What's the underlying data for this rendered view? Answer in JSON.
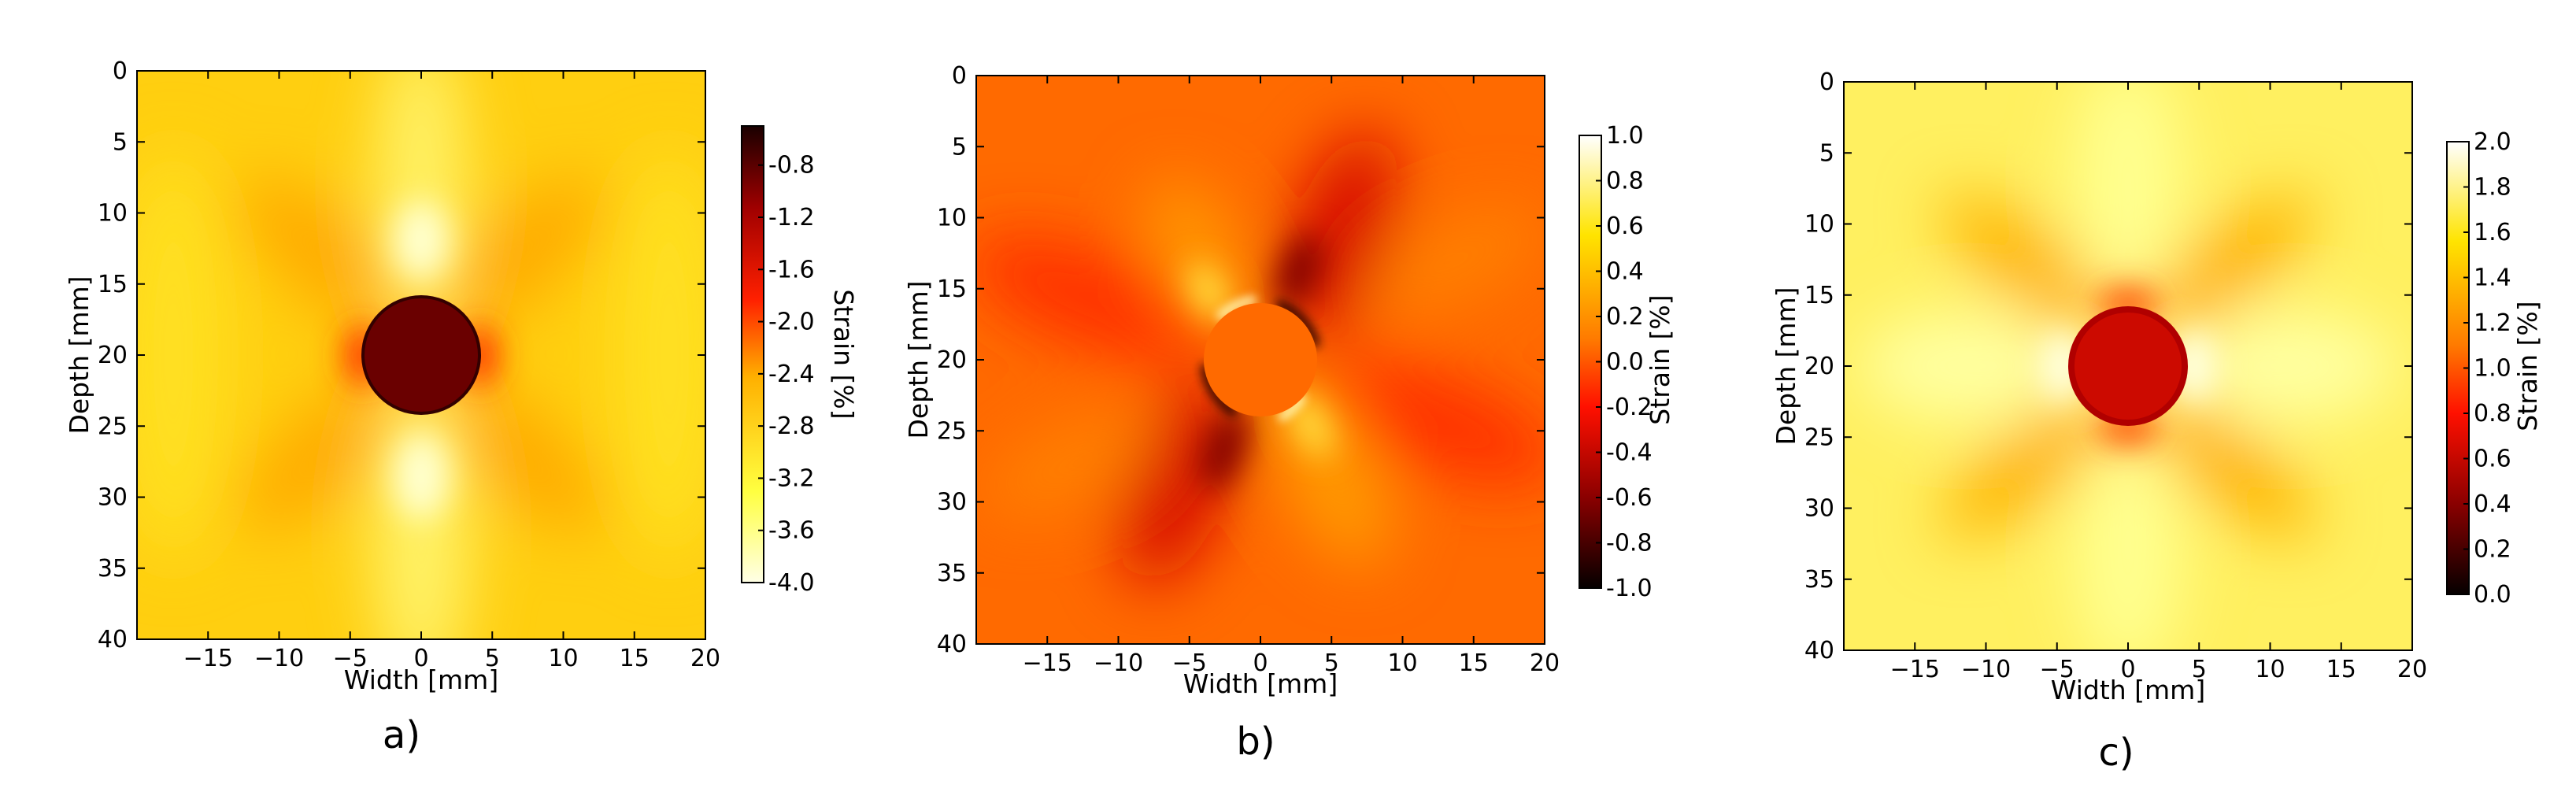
{
  "chart_data": [
    {
      "type": "heatmap",
      "panel_label": "a)",
      "xlabel": "Width [mm]",
      "ylabel": "Depth [mm]",
      "xlim": [
        -20,
        20
      ],
      "ylim": [
        40,
        0
      ],
      "x_ticks": [
        "−15",
        "−10",
        "−5",
        "0",
        "5",
        "10",
        "15",
        "20"
      ],
      "x_tick_values": [
        -15,
        -10,
        -5,
        0,
        5,
        10,
        15,
        20
      ],
      "y_ticks": [
        "0",
        "5",
        "10",
        "15",
        "20",
        "25",
        "30",
        "35",
        "40"
      ],
      "y_tick_values": [
        0,
        5,
        10,
        15,
        20,
        25,
        30,
        35,
        40
      ],
      "colorbar": {
        "label": "Strain [%]",
        "range": [
          -4.0,
          -0.5
        ],
        "colormap": "hot",
        "ticks": [
          "-0.8",
          "-1.2",
          "-1.6",
          "-2.0",
          "-2.4",
          "-2.8",
          "-3.2",
          "-3.6",
          "-4.0"
        ],
        "tick_values": [
          -0.8,
          -1.2,
          -1.6,
          -2.0,
          -2.4,
          -2.8,
          -3.2,
          -3.6,
          -4.0
        ]
      },
      "inclusion": {
        "center_x": 0,
        "center_depth": 20,
        "radius": 4,
        "value": -0.8
      },
      "background_value": -2.8,
      "pattern": "compressive strain, bright vertical bands above/below inclusion, lobes at ±45°"
    },
    {
      "type": "heatmap",
      "panel_label": "b)",
      "xlabel": "Width [mm]",
      "ylabel": "Depth [mm]",
      "xlim": [
        -20,
        20
      ],
      "ylim": [
        40,
        0
      ],
      "x_ticks": [
        "−15",
        "−10",
        "−5",
        "0",
        "5",
        "10",
        "15",
        "20"
      ],
      "x_tick_values": [
        -15,
        -10,
        -5,
        0,
        5,
        10,
        15,
        20
      ],
      "y_ticks": [
        "0",
        "5",
        "10",
        "15",
        "20",
        "25",
        "30",
        "35",
        "40"
      ],
      "y_tick_values": [
        0,
        5,
        10,
        15,
        20,
        25,
        30,
        35,
        40
      ],
      "colorbar": {
        "label": "Strain [%]",
        "range": [
          -1.0,
          1.0
        ],
        "colormap": "hot",
        "ticks": [
          "1.0",
          "0.8",
          "0.6",
          "0.4",
          "0.2",
          "0.0",
          "-0.2",
          "-0.4",
          "-0.6",
          "-0.8",
          "-1.0"
        ],
        "tick_values": [
          1.0,
          0.8,
          0.6,
          0.4,
          0.2,
          0.0,
          -0.2,
          -0.4,
          -0.6,
          -0.8,
          -1.0
        ]
      },
      "inclusion": {
        "center_x": 0,
        "center_depth": 20,
        "radius": 4,
        "value": 0.0
      },
      "background_value": 0.0,
      "pattern": "shear strain, four-lobe pattern: negative lobes upper-right and lower-left, positive lobes upper-left and lower-right"
    },
    {
      "type": "heatmap",
      "panel_label": "c)",
      "xlabel": "Width [mm]",
      "ylabel": "Depth [mm]",
      "xlim": [
        -20,
        20
      ],
      "ylim": [
        40,
        0
      ],
      "x_ticks": [
        "−15",
        "−10",
        "−5",
        "0",
        "5",
        "10",
        "15",
        "20"
      ],
      "x_tick_values": [
        -15,
        -10,
        -5,
        0,
        5,
        10,
        15,
        20
      ],
      "y_ticks": [
        "0",
        "5",
        "10",
        "15",
        "20",
        "25",
        "30",
        "35",
        "40"
      ],
      "y_tick_values": [
        0,
        5,
        10,
        15,
        20,
        25,
        30,
        35,
        40
      ],
      "colorbar": {
        "label": "Strain [%]",
        "range": [
          0.0,
          2.0
        ],
        "colormap": "hot",
        "ticks": [
          "2.0",
          "1.8",
          "1.6",
          "1.4",
          "1.2",
          "1.0",
          "0.8",
          "0.6",
          "0.4",
          "0.2",
          "0.0"
        ],
        "tick_values": [
          2.0,
          1.8,
          1.6,
          1.4,
          1.2,
          1.0,
          0.8,
          0.6,
          0.4,
          0.2,
          0.0
        ]
      },
      "inclusion": {
        "center_x": 0,
        "center_depth": 20,
        "radius": 4,
        "value": 0.7
      },
      "background_value": 1.5,
      "pattern": "lateral strain, bright regions left/right of inclusion, darker lobes at ±45°"
    }
  ]
}
